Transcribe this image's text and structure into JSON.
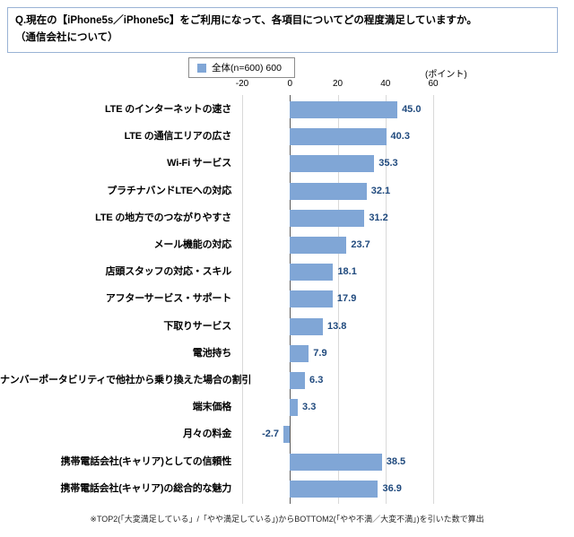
{
  "title": {
    "line1": "Q.現在の【iPhone5s／iPhone5c】をご利用になって、各項目についてどの程度満足していますか。",
    "line2": "（通信会社について）"
  },
  "legend": {
    "label": "全体(n=600) 600"
  },
  "axis": {
    "unit_label": "(ポイント)",
    "ticks": [
      -20,
      0,
      20,
      40,
      60
    ]
  },
  "colors": {
    "bar": "#80a6d6",
    "value_label": "#1f497d",
    "gridline": "#d9d9d9",
    "zero_line": "#595959"
  },
  "footnote": "※TOP2(「大変満足している」/「やや満足している」)からBOTTOM2(「やや不満／大変不満」)を引いた数で算出",
  "chart_data": {
    "type": "bar",
    "orientation": "horizontal",
    "title": "現在のiPhone5s／iPhone5c利用における各項目の満足度（通信会社について）",
    "series_name": "全体(n=600)",
    "categories": [
      "LTE のインターネットの速さ",
      "LTE の通信エリアの広さ",
      "Wi-Fi サービス",
      "プラチナバンドLTEへの対応",
      "LTE の地方でのつながりやすさ",
      "メール機能の対応",
      "店頭スタッフの対応・スキル",
      "アフターサービス・サポート",
      "下取りサービス",
      "電池持ち",
      "ナンバーポータビリティで他社から乗り換えた場合の割引",
      "端末価格",
      "月々の料金",
      "携帯電話会社(キャリア)としての信頼性",
      "携帯電話会社(キャリア)の総合的な魅力"
    ],
    "values": [
      45.0,
      40.3,
      35.3,
      32.1,
      31.2,
      23.7,
      18.1,
      17.9,
      13.8,
      7.9,
      6.3,
      3.3,
      -2.7,
      38.5,
      36.9
    ],
    "xlim": [
      -20,
      60
    ],
    "xlabel": "ポイント",
    "legend_position": "top",
    "grid": true
  }
}
